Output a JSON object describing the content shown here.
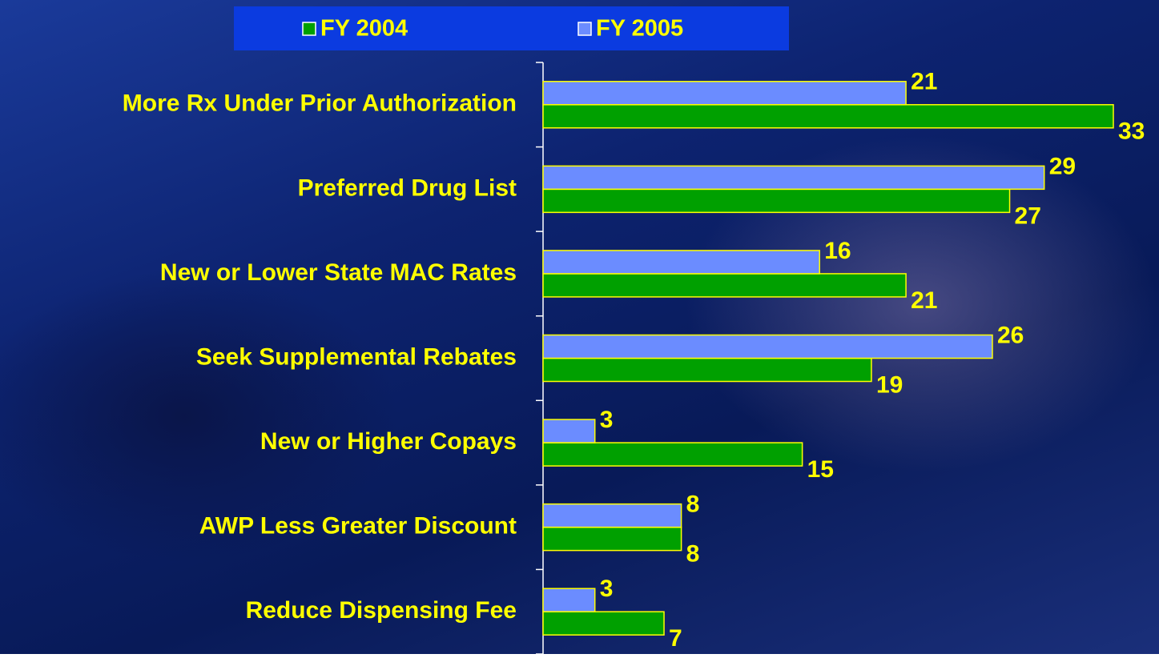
{
  "chart_data": {
    "type": "hbar",
    "categories": [
      "More Rx Under Prior Authorization",
      "Preferred Drug List",
      "New or Lower State MAC Rates",
      "Seek Supplemental Rebates",
      "New or Higher Copays",
      "AWP Less Greater Discount",
      "Reduce Dispensing Fee"
    ],
    "series": [
      {
        "name": "FY 2004",
        "color": "#00a000",
        "values": [
          33,
          27,
          21,
          19,
          15,
          8,
          7
        ]
      },
      {
        "name": "FY 2005",
        "color": "#6b8cff",
        "values": [
          21,
          29,
          16,
          26,
          3,
          8,
          3
        ]
      }
    ],
    "legend": "top"
  }
}
